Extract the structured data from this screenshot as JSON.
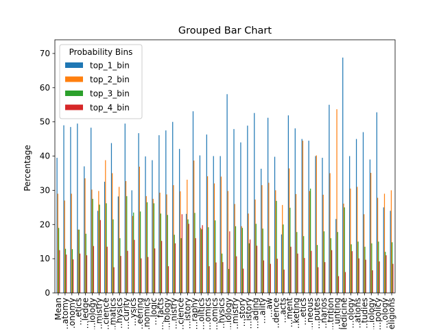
{
  "chart_data": {
    "type": "bar",
    "title": "Grouped Bar Chart",
    "xlabel": "",
    "ylabel": "Percentage",
    "ylim": [
      0,
      74
    ],
    "yticks": [
      0,
      10,
      20,
      30,
      40,
      50,
      60,
      70
    ],
    "grid": false,
    "legend": {
      "title": "Probability Bins",
      "position": "top-left"
    },
    "categories": [
      "Mean",
      "…atomy",
      "…onomy",
      "…etics",
      "…ledge",
      "…iology",
      "…mistry",
      "…cience",
      "…matics",
      "…hysics",
      "…curity",
      "…ysics",
      "…eering",
      "…nomics",
      "…logic",
      "…_facts",
      "…iology",
      "…nistry",
      "…cience",
      "…istory",
      "…raphy",
      "…olitics",
      "…omics",
      "…omics",
      "…hysics",
      "…iology",
      "…mistry",
      "…story",
      "…istory",
      "…ading",
      "…ality",
      "…aw",
      "…dence",
      "…acts",
      "…ment",
      "…keting",
      "…etics",
      "…neous",
      "…putes",
      "…narios",
      "…trition",
      "…unting",
      "…ledicine",
      "…ology",
      "…ations",
      "…tudies",
      "…iology",
      "…policy",
      "…ology",
      "…eligions"
    ],
    "series": [
      {
        "name": "top_1_bin",
        "color": "#1f77b4",
        "values": [
          39.5,
          49.0,
          48.5,
          49.5,
          37.0,
          48.3,
          24.0,
          32.5,
          43.8,
          28.2,
          49.5,
          30.0,
          46.7,
          39.9,
          38.8,
          46.1,
          47.5,
          50.0,
          42.1,
          23.1,
          53.1,
          40.2,
          46.3,
          40.0,
          40.0,
          58.1,
          47.9,
          44.0,
          48.9,
          52.6,
          36.3,
          51.2,
          39.8,
          17.1,
          51.9,
          48.1,
          45.0,
          44.5,
          40.0,
          39.5,
          55.0,
          21.6,
          68.8,
          40.0,
          45.0,
          47.0,
          39.0,
          52.8,
          25.0,
          24.0
        ]
      },
      {
        "name": "top_2_bin",
        "color": "#ff7f0e",
        "values": [
          29.0,
          27.0,
          29.0,
          18.5,
          33.5,
          30.2,
          29.8,
          38.8,
          35.0,
          31.0,
          32.7,
          22.5,
          36.9,
          28.3,
          27.5,
          29.3,
          28.8,
          31.5,
          29.7,
          33.1,
          38.7,
          19.0,
          34.1,
          32.0,
          34.0,
          29.8,
          26.0,
          19.5,
          23.2,
          27.3,
          31.5,
          32.2,
          30.0,
          25.7,
          36.4,
          28.9,
          44.5,
          29.8,
          40.2,
          28.7,
          35.0,
          53.7,
          26.1,
          30.5,
          31.0,
          23.0,
          35.1,
          27.8,
          29.0,
          30.0
        ]
      },
      {
        "name": "top_3_bin",
        "color": "#2ca02c",
        "values": [
          19.0,
          12.9,
          12.8,
          18.5,
          17.3,
          27.5,
          25.8,
          26.2,
          21.5,
          16.0,
          28.3,
          23.5,
          23.8,
          26.5,
          26.2,
          23.2,
          22.8,
          17.0,
          16.0,
          21.5,
          23.4,
          18.6,
          19.2,
          21.2,
          11.5,
          7.0,
          19.5,
          19.0,
          14.5,
          20.2,
          18.8,
          13.7,
          26.9,
          20.0,
          24.9,
          17.8,
          16.6,
          30.5,
          14.0,
          18.0,
          16.0,
          17.8,
          25.0,
          14.2,
          15.0,
          13.5,
          14.5,
          15.0,
          12.0,
          14.8
        ]
      },
      {
        "name": "top_4_bin",
        "color": "#d62728",
        "values": [
          12.5,
          11.2,
          9.8,
          11.5,
          11.0,
          13.7,
          21.3,
          13.5,
          7.5,
          10.8,
          12.3,
          15.5,
          10.1,
          10.5,
          13.0,
          15.2,
          7.8,
          14.5,
          23.0,
          20.2,
          16.0,
          19.8,
          7.8,
          8.9,
          9.0,
          18.0,
          10.7,
          7.1,
          15.6,
          13.8,
          9.5,
          8.5,
          10.0,
          6.8,
          13.5,
          11.5,
          10.2,
          12.3,
          7.5,
          9.0,
          12.5,
          4.9,
          6.1,
          12.2,
          10.1,
          9.7,
          6.6,
          9.2,
          11.0,
          8.5
        ]
      }
    ]
  }
}
